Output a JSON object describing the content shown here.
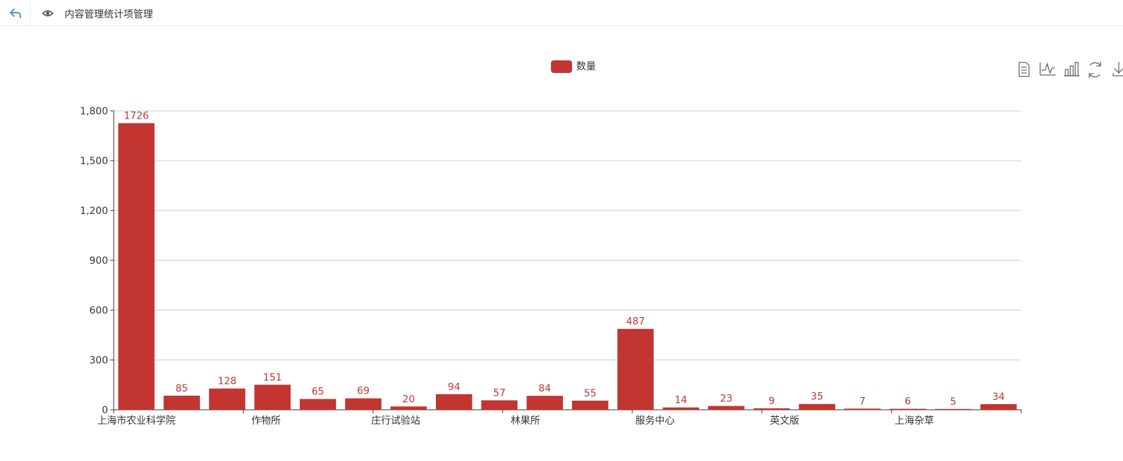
{
  "header": {
    "back_icon": "back-arrow-icon",
    "view_icon": "eye-icon",
    "title": "内容管理统计项管理"
  },
  "toolbox": {
    "icons": [
      "data-view-icon",
      "line-chart-icon",
      "bar-chart-icon",
      "refresh-icon",
      "download-icon"
    ]
  },
  "colors": {
    "bar": "#c23531",
    "label": "#c23531",
    "axis": "#333333",
    "grid": "#cccccc"
  },
  "chart_data": {
    "type": "bar",
    "legend": {
      "name": "数量",
      "position": "top-center"
    },
    "x_labels": [
      "上海市农业科学院",
      "作物所",
      "庄行试验站",
      "林果所",
      "服务中心",
      "英文版",
      "上海杂草"
    ],
    "values": [
      1726,
      85,
      128,
      151,
      65,
      69,
      20,
      94,
      57,
      84,
      55,
      487,
      14,
      23,
      9,
      35,
      7,
      6,
      5,
      34
    ],
    "ylim": [
      0,
      1800
    ],
    "yticks": [
      "0",
      "300",
      "600",
      "900",
      "1,200",
      "1,500",
      "1,800"
    ],
    "grid": true,
    "data_labels": true
  }
}
